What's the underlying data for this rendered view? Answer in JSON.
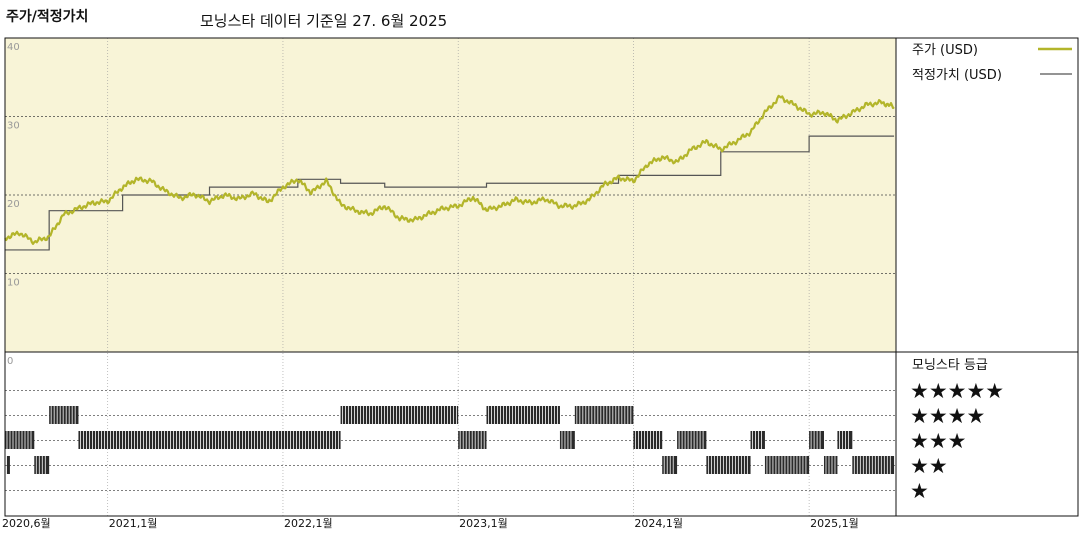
{
  "header": {
    "title": "주가/적정가치",
    "subtitle": "모닝스타 데이터 기준일 27. 6월 2025"
  },
  "chart_data": {
    "type": "line",
    "ylim": [
      0,
      40
    ],
    "y_ticks": [
      "40",
      "30",
      "20",
      "10",
      "0"
    ],
    "x_ticks": [
      {
        "label": "2020,6월",
        "date": "2020-06-01"
      },
      {
        "label": "2021,1월",
        "date": "2021-01-01"
      },
      {
        "label": "2022,1월",
        "date": "2022-01-01"
      },
      {
        "label": "2023,1월",
        "date": "2023-01-01"
      },
      {
        "label": "2024,1월",
        "date": "2024-01-01"
      },
      {
        "label": "2025,1월",
        "date": "2025-01-01"
      }
    ],
    "x_range": [
      "2020-06-01",
      "2025-07-01"
    ],
    "legend": [
      {
        "name": "주가 (USD)",
        "color": "#b3b52a"
      },
      {
        "name": "적정가치 (USD)",
        "color": "#555555"
      }
    ],
    "series": [
      {
        "name": "주가 (USD)",
        "color": "#b3b52a",
        "points": [
          [
            "2020-06-01",
            14.5
          ],
          [
            "2020-07-01",
            15.2
          ],
          [
            "2020-08-01",
            14.0
          ],
          [
            "2020-09-01",
            14.7
          ],
          [
            "2020-10-01",
            17.5
          ],
          [
            "2020-11-01",
            18.3
          ],
          [
            "2020-12-01",
            19.0
          ],
          [
            "2021-01-01",
            19.2
          ],
          [
            "2021-02-01",
            21.0
          ],
          [
            "2021-03-01",
            22.0
          ],
          [
            "2021-04-01",
            21.8
          ],
          [
            "2021-05-01",
            20.5
          ],
          [
            "2021-06-01",
            19.6
          ],
          [
            "2021-07-01",
            20.1
          ],
          [
            "2021-08-01",
            19.2
          ],
          [
            "2021-09-01",
            20.0
          ],
          [
            "2021-10-01",
            19.5
          ],
          [
            "2021-11-01",
            20.2
          ],
          [
            "2021-12-01",
            19.1
          ],
          [
            "2022-01-01",
            21.0
          ],
          [
            "2022-02-01",
            22.0
          ],
          [
            "2022-03-01",
            20.3
          ],
          [
            "2022-04-01",
            21.8
          ],
          [
            "2022-05-01",
            18.8
          ],
          [
            "2022-06-01",
            18.0
          ],
          [
            "2022-07-01",
            17.6
          ],
          [
            "2022-08-01",
            18.6
          ],
          [
            "2022-09-01",
            17.0
          ],
          [
            "2022-10-01",
            16.8
          ],
          [
            "2022-11-01",
            17.6
          ],
          [
            "2022-12-01",
            18.3
          ],
          [
            "2023-01-01",
            18.6
          ],
          [
            "2023-02-01",
            19.7
          ],
          [
            "2023-03-01",
            18.1
          ],
          [
            "2023-04-01",
            18.6
          ],
          [
            "2023-05-01",
            19.4
          ],
          [
            "2023-06-01",
            19.0
          ],
          [
            "2023-07-01",
            19.5
          ],
          [
            "2023-08-01",
            18.6
          ],
          [
            "2023-09-01",
            18.6
          ],
          [
            "2023-10-01",
            19.4
          ],
          [
            "2023-11-01",
            21.3
          ],
          [
            "2023-12-01",
            22.2
          ],
          [
            "2024-01-01",
            21.8
          ],
          [
            "2024-02-01",
            24.0
          ],
          [
            "2024-03-01",
            24.8
          ],
          [
            "2024-04-01",
            24.2
          ],
          [
            "2024-05-01",
            25.8
          ],
          [
            "2024-06-01",
            26.8
          ],
          [
            "2024-07-01",
            25.8
          ],
          [
            "2024-08-01",
            26.8
          ],
          [
            "2024-09-01",
            28.0
          ],
          [
            "2024-10-01",
            30.5
          ],
          [
            "2024-11-01",
            32.5
          ],
          [
            "2024-12-01",
            31.5
          ],
          [
            "2025-01-01",
            30.3
          ],
          [
            "2025-02-01",
            30.5
          ],
          [
            "2025-03-01",
            29.5
          ],
          [
            "2025-04-01",
            30.5
          ],
          [
            "2025-05-01",
            31.5
          ],
          [
            "2025-06-01",
            31.8
          ],
          [
            "2025-06-27",
            31.2
          ]
        ]
      },
      {
        "name": "적정가치 (USD)",
        "color": "#555555",
        "steps": [
          [
            "2020-06-01",
            13.0
          ],
          [
            "2020-09-01",
            18.0
          ],
          [
            "2021-02-01",
            20.0
          ],
          [
            "2021-08-01",
            21.0
          ],
          [
            "2022-02-01",
            22.0
          ],
          [
            "2022-05-01",
            21.5
          ],
          [
            "2022-08-01",
            21.0
          ],
          [
            "2023-03-01",
            21.5
          ],
          [
            "2023-12-01",
            22.5
          ],
          [
            "2024-07-01",
            25.5
          ],
          [
            "2025-01-01",
            27.5
          ],
          [
            "2025-06-27",
            27.5
          ]
        ]
      }
    ],
    "rating": {
      "label": "모닝스타 등급",
      "levels": [
        "★★★★★",
        "★★★★",
        "★★★",
        "★★",
        "★"
      ],
      "ranges": [
        {
          "stars": 3,
          "start": "2020-06-01",
          "end": "2020-08-01"
        },
        {
          "stars": 2,
          "start": "2020-06-05",
          "end": "2020-06-10"
        },
        {
          "stars": 2,
          "start": "2020-08-01",
          "end": "2020-09-01"
        },
        {
          "stars": 4,
          "start": "2020-09-01",
          "end": "2020-11-01"
        },
        {
          "stars": 3,
          "start": "2020-11-01",
          "end": "2022-05-01"
        },
        {
          "stars": 4,
          "start": "2022-05-01",
          "end": "2023-01-01"
        },
        {
          "stars": 3,
          "start": "2023-01-01",
          "end": "2023-03-01"
        },
        {
          "stars": 4,
          "start": "2023-03-01",
          "end": "2023-08-01"
        },
        {
          "stars": 3,
          "start": "2023-08-01",
          "end": "2023-09-01"
        },
        {
          "stars": 4,
          "start": "2023-09-01",
          "end": "2024-01-01"
        },
        {
          "stars": 3,
          "start": "2024-01-01",
          "end": "2024-03-01"
        },
        {
          "stars": 2,
          "start": "2024-03-01",
          "end": "2024-04-01"
        },
        {
          "stars": 3,
          "start": "2024-04-01",
          "end": "2024-06-01"
        },
        {
          "stars": 2,
          "start": "2024-06-01",
          "end": "2024-09-01"
        },
        {
          "stars": 3,
          "start": "2024-09-01",
          "end": "2024-10-01"
        },
        {
          "stars": 2,
          "start": "2024-10-01",
          "end": "2025-01-01"
        },
        {
          "stars": 3,
          "start": "2025-01-01",
          "end": "2025-02-01"
        },
        {
          "stars": 2,
          "start": "2025-02-01",
          "end": "2025-03-01"
        },
        {
          "stars": 3,
          "start": "2025-03-01",
          "end": "2025-04-01"
        },
        {
          "stars": 2,
          "start": "2025-04-01",
          "end": "2025-06-27"
        }
      ]
    }
  }
}
